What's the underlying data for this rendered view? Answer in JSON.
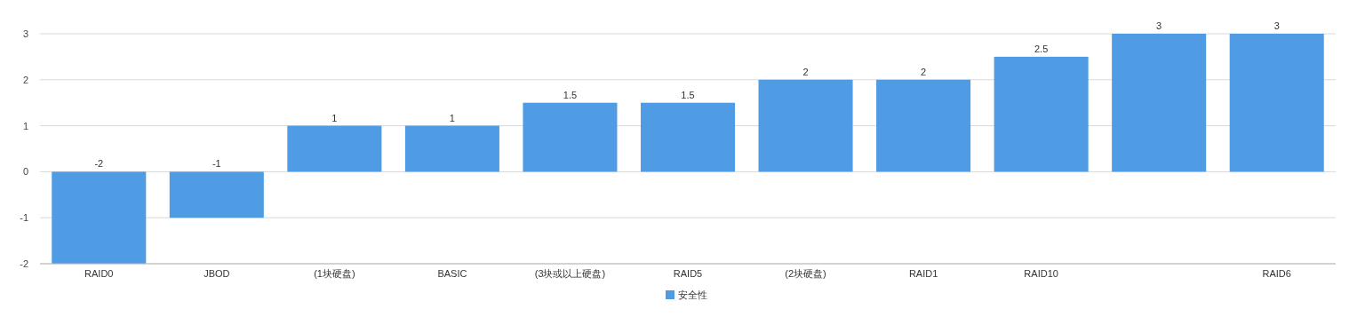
{
  "chart_data": {
    "type": "bar",
    "categories": [
      "RAID0",
      "JBOD",
      "(1块硬盘)",
      "BASIC",
      "(3块或以上硬盘)",
      "RAID5",
      "(2块硬盘)",
      "RAID1",
      "RAID10",
      null,
      "RAID6"
    ],
    "series": [
      {
        "name": "安全性",
        "color": "#4f9be4",
        "values": [
          -2,
          -1,
          1,
          1,
          1.5,
          1.5,
          2,
          2,
          2.5,
          3,
          3
        ]
      }
    ],
    "ylim": [
      -2,
      3
    ],
    "yticks": [
      -2,
      -1,
      0,
      1,
      2,
      3
    ],
    "grid": "y",
    "legend": "bottom",
    "data_labels": true
  }
}
